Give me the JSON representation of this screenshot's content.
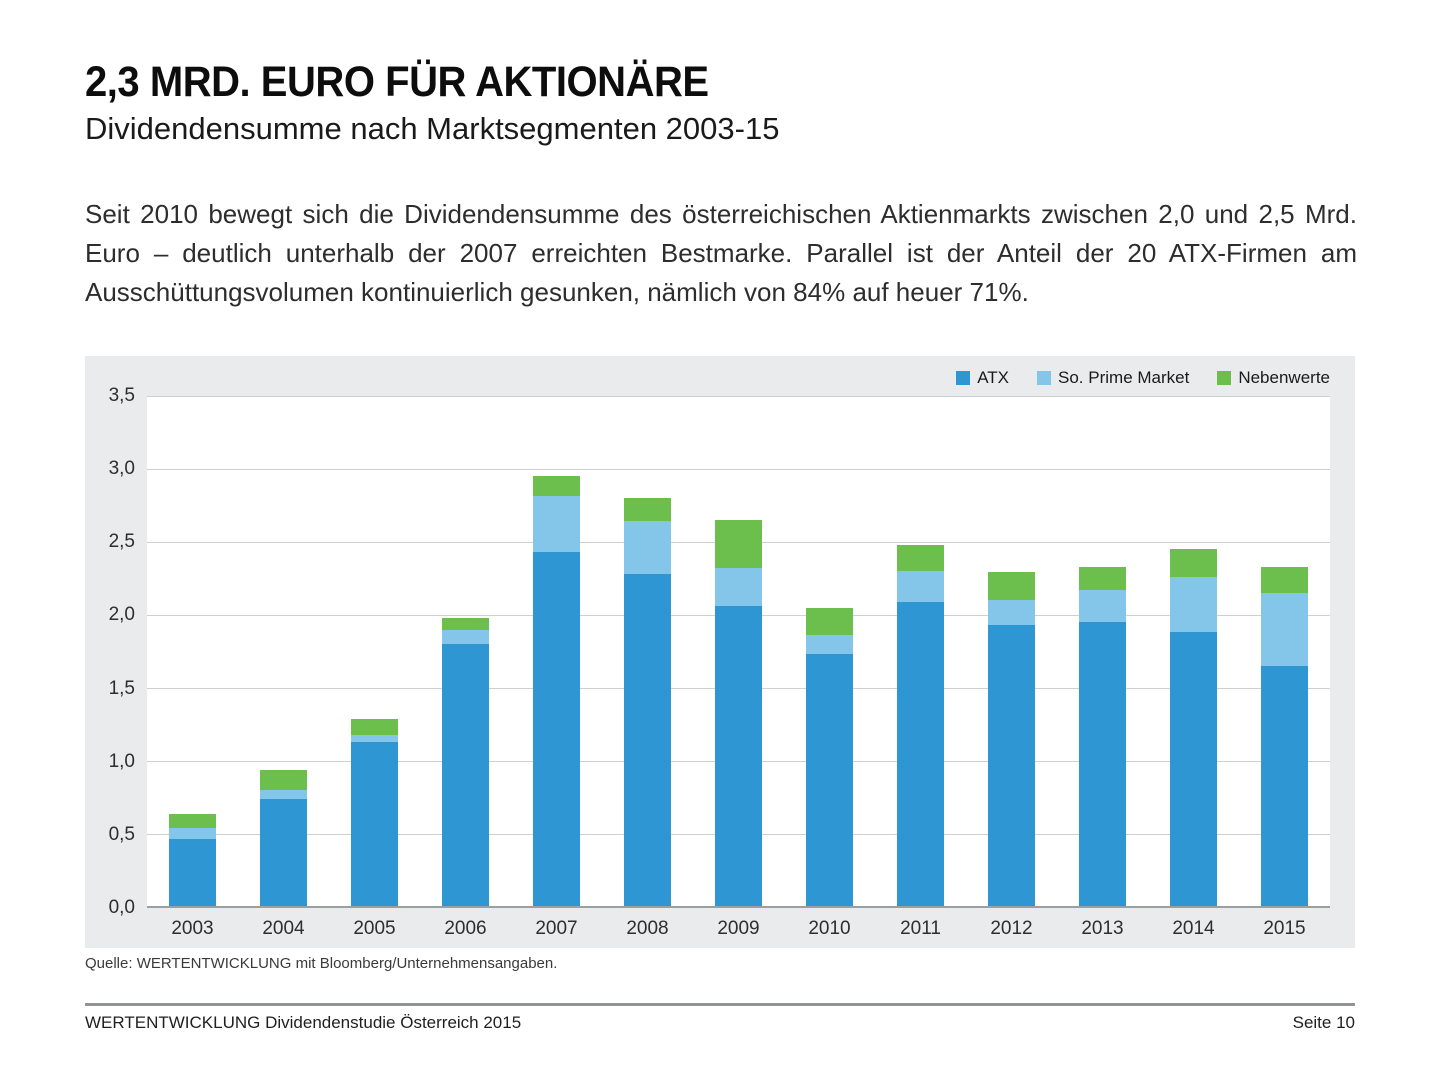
{
  "header": {
    "title": "2,3 MRD. EURO FÜR AKTIONÄRE",
    "subtitle": "Dividendensumme nach Marktsegmenten 2003-15"
  },
  "intro": "Seit 2010 bewegt sich die Dividendensumme des österreichischen Aktienmarkts zwischen 2,0 und 2,5 Mrd. Euro – deutlich unterhalb der 2007 erreichten Bestmarke. Parallel ist der Anteil der 20 ATX-Firmen am Ausschüttungsvolumen kontinuierlich gesunken, nämlich von 84% auf heuer 71%.",
  "chart_data": {
    "type": "bar",
    "stacked": true,
    "categories": [
      "2003",
      "2004",
      "2005",
      "2006",
      "2007",
      "2008",
      "2009",
      "2010",
      "2011",
      "2012",
      "2013",
      "2014",
      "2015"
    ],
    "series": [
      {
        "name": "ATX",
        "color": "#2e96d2",
        "values": [
          0.46,
          0.73,
          1.12,
          1.79,
          2.42,
          2.27,
          2.05,
          1.72,
          2.08,
          1.92,
          1.94,
          1.87,
          1.64
        ]
      },
      {
        "name": "So. Prime Market",
        "color": "#84c6e9",
        "values": [
          0.07,
          0.06,
          0.05,
          0.1,
          0.38,
          0.36,
          0.26,
          0.13,
          0.21,
          0.17,
          0.22,
          0.38,
          0.5
        ]
      },
      {
        "name": "Nebenwerte",
        "color": "#6cbf4c",
        "values": [
          0.1,
          0.14,
          0.11,
          0.08,
          0.14,
          0.16,
          0.33,
          0.19,
          0.18,
          0.19,
          0.16,
          0.19,
          0.18
        ]
      }
    ],
    "ylim": [
      0,
      3.5
    ],
    "ytick_step": 0.5,
    "ytick_labels": [
      "0,0",
      "0,5",
      "1,0",
      "1,5",
      "2,0",
      "2,5",
      "3,0",
      "3,5"
    ],
    "grid": "horizontal",
    "legend_position": "top-right"
  },
  "source": "Quelle: WERTENTWICKLUNG mit Bloomberg/Unternehmensangaben.",
  "footer": {
    "left": "WERTENTWICKLUNG Dividendenstudie Österreich 2015",
    "right": "Seite 10"
  }
}
